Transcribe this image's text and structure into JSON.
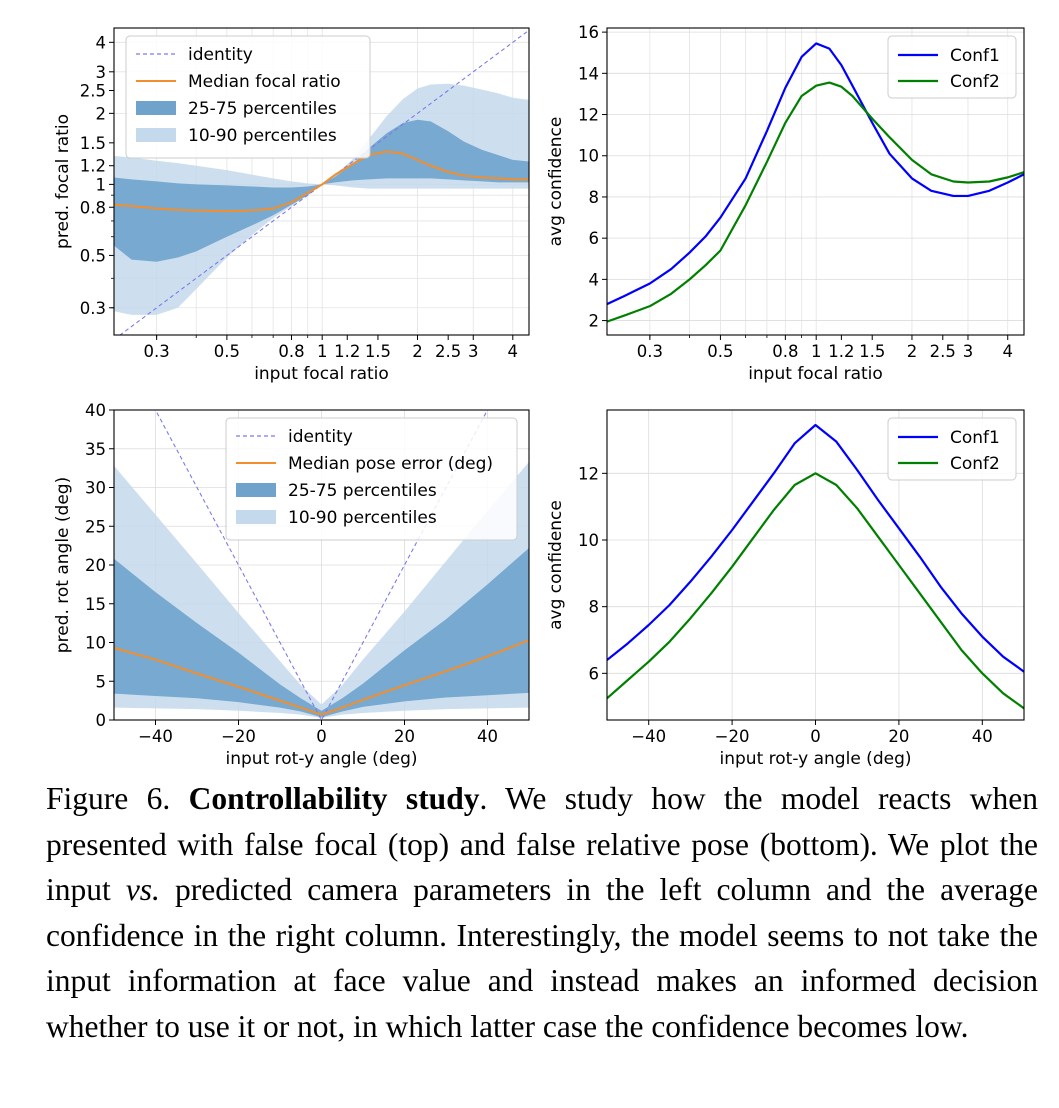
{
  "chart_data": [
    {
      "id": "focal-pred",
      "type": "line",
      "xscale": "log",
      "yscale": "log",
      "xlim": [
        0.22,
        4.5
      ],
      "ylim": [
        0.23,
        4.6
      ],
      "xticks": [
        0.3,
        0.5,
        0.8,
        1,
        1.2,
        1.5,
        2,
        2.5,
        3,
        4
      ],
      "xtick_labels": [
        "0.3",
        "0.5",
        "0.8",
        "1",
        "1.2",
        "1.5",
        "2",
        "2.5",
        "3",
        "4"
      ],
      "yticks": [
        0.3,
        0.5,
        0.8,
        1,
        1.2,
        1.5,
        2,
        2.5,
        3,
        4
      ],
      "ytick_labels": [
        "0.3",
        "0.5",
        "0.8",
        "1",
        "1.2",
        "1.5",
        "2",
        "2.5",
        "3",
        "4"
      ],
      "xlabel": "input focal ratio",
      "ylabel": "pred. focal ratio",
      "grid": true,
      "legend": {
        "placement": "top-left",
        "entries": [
          {
            "label": "identity",
            "style": "dashed",
            "color": "#7b7be8"
          },
          {
            "label": "Median focal ratio",
            "style": "line",
            "color": "#f28e2b"
          },
          {
            "label": "25-75 percentiles",
            "style": "patch",
            "color": "#6fa3cc"
          },
          {
            "label": "10-90 percentiles",
            "style": "patch",
            "color": "#c4d9ec"
          }
        ]
      },
      "x": [
        0.22,
        0.25,
        0.3,
        0.35,
        0.4,
        0.5,
        0.6,
        0.7,
        0.8,
        0.9,
        1.0,
        1.1,
        1.25,
        1.4,
        1.6,
        1.8,
        2.0,
        2.2,
        2.5,
        2.8,
        3.2,
        3.6,
        4.0,
        4.5
      ],
      "identity": {
        "x": [
          0.22,
          4.5
        ],
        "y": [
          0.22,
          4.5
        ]
      },
      "median": [
        0.82,
        0.81,
        0.79,
        0.78,
        0.775,
        0.77,
        0.775,
        0.79,
        0.84,
        0.92,
        1.0,
        1.1,
        1.22,
        1.33,
        1.38,
        1.35,
        1.27,
        1.2,
        1.13,
        1.09,
        1.07,
        1.06,
        1.05,
        1.05
      ],
      "p25": [
        0.55,
        0.48,
        0.47,
        0.49,
        0.52,
        0.6,
        0.67,
        0.74,
        0.82,
        0.9,
        1.0,
        1.02,
        1.04,
        1.05,
        1.06,
        1.06,
        1.06,
        1.06,
        1.05,
        1.04,
        1.03,
        1.02,
        1.02,
        1.02
      ],
      "p75": [
        1.07,
        1.05,
        1.03,
        1.01,
        1.0,
        0.99,
        0.98,
        0.97,
        0.97,
        0.98,
        1.0,
        1.08,
        1.22,
        1.42,
        1.65,
        1.82,
        1.88,
        1.85,
        1.68,
        1.52,
        1.4,
        1.33,
        1.27,
        1.25
      ],
      "p10": [
        0.29,
        0.28,
        0.28,
        0.3,
        0.36,
        0.49,
        0.61,
        0.72,
        0.81,
        0.9,
        1.0,
        0.99,
        0.97,
        0.96,
        0.96,
        0.96,
        0.96,
        0.96,
        0.96,
        0.96,
        0.96,
        0.96,
        0.96,
        0.96
      ],
      "p90": [
        1.32,
        1.3,
        1.26,
        1.23,
        1.2,
        1.15,
        1.1,
        1.06,
        1.03,
        1.01,
        1.0,
        1.1,
        1.28,
        1.55,
        1.95,
        2.3,
        2.55,
        2.65,
        2.67,
        2.62,
        2.52,
        2.43,
        2.33,
        2.28
      ]
    },
    {
      "id": "focal-conf",
      "type": "line",
      "xscale": "log",
      "xlim": [
        0.22,
        4.5
      ],
      "ylim": [
        1.3,
        16.2
      ],
      "xticks": [
        0.3,
        0.5,
        0.8,
        1,
        1.2,
        1.5,
        2,
        2.5,
        3,
        4
      ],
      "xtick_labels": [
        "0.3",
        "0.5",
        "0.8",
        "1",
        "1.2",
        "1.5",
        "2",
        "2.5",
        "3",
        "4"
      ],
      "yticks": [
        2,
        4,
        6,
        8,
        10,
        12,
        14,
        16
      ],
      "ytick_labels": [
        "2",
        "4",
        "6",
        "8",
        "10",
        "12",
        "14",
        "16"
      ],
      "xlabel": "input focal ratio",
      "ylabel": "avg confidence",
      "grid": true,
      "legend": {
        "placement": "top-right"
      },
      "x": [
        0.22,
        0.25,
        0.3,
        0.35,
        0.4,
        0.45,
        0.5,
        0.6,
        0.7,
        0.8,
        0.9,
        1.0,
        1.1,
        1.2,
        1.3,
        1.5,
        1.7,
        2.0,
        2.3,
        2.7,
        3.0,
        3.5,
        4.0,
        4.5
      ],
      "series": [
        {
          "name": "Conf1",
          "color": "#0000ff",
          "values": [
            2.8,
            3.2,
            3.8,
            4.5,
            5.3,
            6.1,
            7.0,
            8.9,
            11.2,
            13.3,
            14.8,
            15.45,
            15.2,
            14.4,
            13.4,
            11.6,
            10.1,
            8.9,
            8.3,
            8.05,
            8.05,
            8.3,
            8.7,
            9.1
          ]
        },
        {
          "name": "Conf2",
          "color": "#008000",
          "values": [
            1.95,
            2.25,
            2.7,
            3.3,
            4.0,
            4.7,
            5.4,
            7.6,
            9.7,
            11.6,
            12.9,
            13.4,
            13.55,
            13.35,
            12.9,
            11.8,
            10.9,
            9.8,
            9.1,
            8.75,
            8.7,
            8.75,
            8.95,
            9.2
          ]
        }
      ]
    },
    {
      "id": "pose-pred",
      "type": "line",
      "xlim": [
        -50,
        50
      ],
      "ylim": [
        0,
        40
      ],
      "xticks": [
        -40,
        -20,
        0,
        20,
        40
      ],
      "xtick_labels": [
        "−40",
        "−20",
        "0",
        "20",
        "40"
      ],
      "yticks": [
        0,
        5,
        10,
        15,
        20,
        25,
        30,
        35,
        40
      ],
      "ytick_labels": [
        "0",
        "5",
        "10",
        "15",
        "20",
        "25",
        "30",
        "35",
        "40"
      ],
      "xlabel": "input rot-y angle (deg)",
      "ylabel": "pred. rot angle (deg)",
      "grid": true,
      "legend": {
        "placement": "top-right",
        "entries": [
          {
            "label": "identity",
            "style": "dashed",
            "color": "#7b7be8"
          },
          {
            "label": "Median pose error (deg)",
            "style": "line",
            "color": "#f28e2b"
          },
          {
            "label": "25-75 percentiles",
            "style": "patch",
            "color": "#6fa3cc"
          },
          {
            "label": "10-90 percentiles",
            "style": "patch",
            "color": "#c4d9ec"
          }
        ]
      },
      "x": [
        -50,
        -40,
        -30,
        -20,
        -10,
        -5,
        0,
        5,
        10,
        20,
        30,
        40,
        50
      ],
      "identity": {
        "x": [
          -50,
          0,
          50
        ],
        "y": [
          50,
          0,
          50
        ]
      },
      "median": [
        9.3,
        7.8,
        6.0,
        4.3,
        2.5,
        1.6,
        0.7,
        1.6,
        2.6,
        4.5,
        6.3,
        8.2,
        10.3
      ],
      "p25": [
        3.4,
        3.1,
        2.8,
        2.3,
        1.6,
        1.1,
        0.35,
        1.1,
        1.7,
        2.4,
        2.9,
        3.2,
        3.5
      ],
      "p75": [
        20.8,
        16.5,
        12.5,
        8.7,
        4.6,
        2.8,
        1.2,
        2.8,
        4.7,
        9.0,
        13.0,
        17.5,
        22.2
      ],
      "p10": [
        1.6,
        1.5,
        1.4,
        1.2,
        0.9,
        0.7,
        0.25,
        0.7,
        0.9,
        1.2,
        1.4,
        1.5,
        1.6
      ],
      "p90": [
        32.8,
        26.5,
        20.2,
        13.8,
        7.6,
        4.5,
        2.0,
        4.5,
        7.8,
        14.0,
        20.5,
        27.0,
        33.3
      ]
    },
    {
      "id": "pose-conf",
      "type": "line",
      "xlim": [
        -50,
        50
      ],
      "ylim": [
        4.6,
        13.9
      ],
      "xticks": [
        -40,
        -20,
        0,
        20,
        40
      ],
      "xtick_labels": [
        "−40",
        "−20",
        "0",
        "20",
        "40"
      ],
      "yticks": [
        6,
        8,
        10,
        12
      ],
      "ytick_labels": [
        "6",
        "8",
        "10",
        "12"
      ],
      "xlabel": "input rot-y angle (deg)",
      "ylabel": "avg confidence",
      "grid": true,
      "legend": {
        "placement": "top-right"
      },
      "x": [
        -50,
        -45,
        -40,
        -35,
        -30,
        -25,
        -20,
        -15,
        -10,
        -5,
        0,
        5,
        10,
        15,
        20,
        25,
        30,
        35,
        40,
        45,
        50
      ],
      "series": [
        {
          "name": "Conf1",
          "color": "#0000ff",
          "values": [
            6.4,
            6.9,
            7.45,
            8.05,
            8.75,
            9.5,
            10.3,
            11.15,
            12.0,
            12.9,
            13.45,
            12.95,
            12.1,
            11.2,
            10.35,
            9.5,
            8.6,
            7.8,
            7.1,
            6.5,
            6.05
          ]
        },
        {
          "name": "Conf2",
          "color": "#008000",
          "values": [
            5.25,
            5.8,
            6.35,
            6.95,
            7.65,
            8.4,
            9.2,
            10.05,
            10.9,
            11.65,
            12.0,
            11.65,
            10.95,
            10.1,
            9.25,
            8.4,
            7.55,
            6.7,
            6.0,
            5.4,
            4.95
          ]
        }
      ]
    }
  ],
  "caption": {
    "figure_label": "Figure 6. ",
    "title": "Controllability study",
    "part1": ". We study how the model reacts when presented with false focal (top) and false relative pose (bottom). We plot the input ",
    "vs": "vs.",
    "part2": " predicted camera parameters in the left column and the average confidence in the right column. Interestingly, the model seems to not take the input information at face value and instead makes an informed decision whether to use it or not, in which latter case the confidence becomes low."
  }
}
